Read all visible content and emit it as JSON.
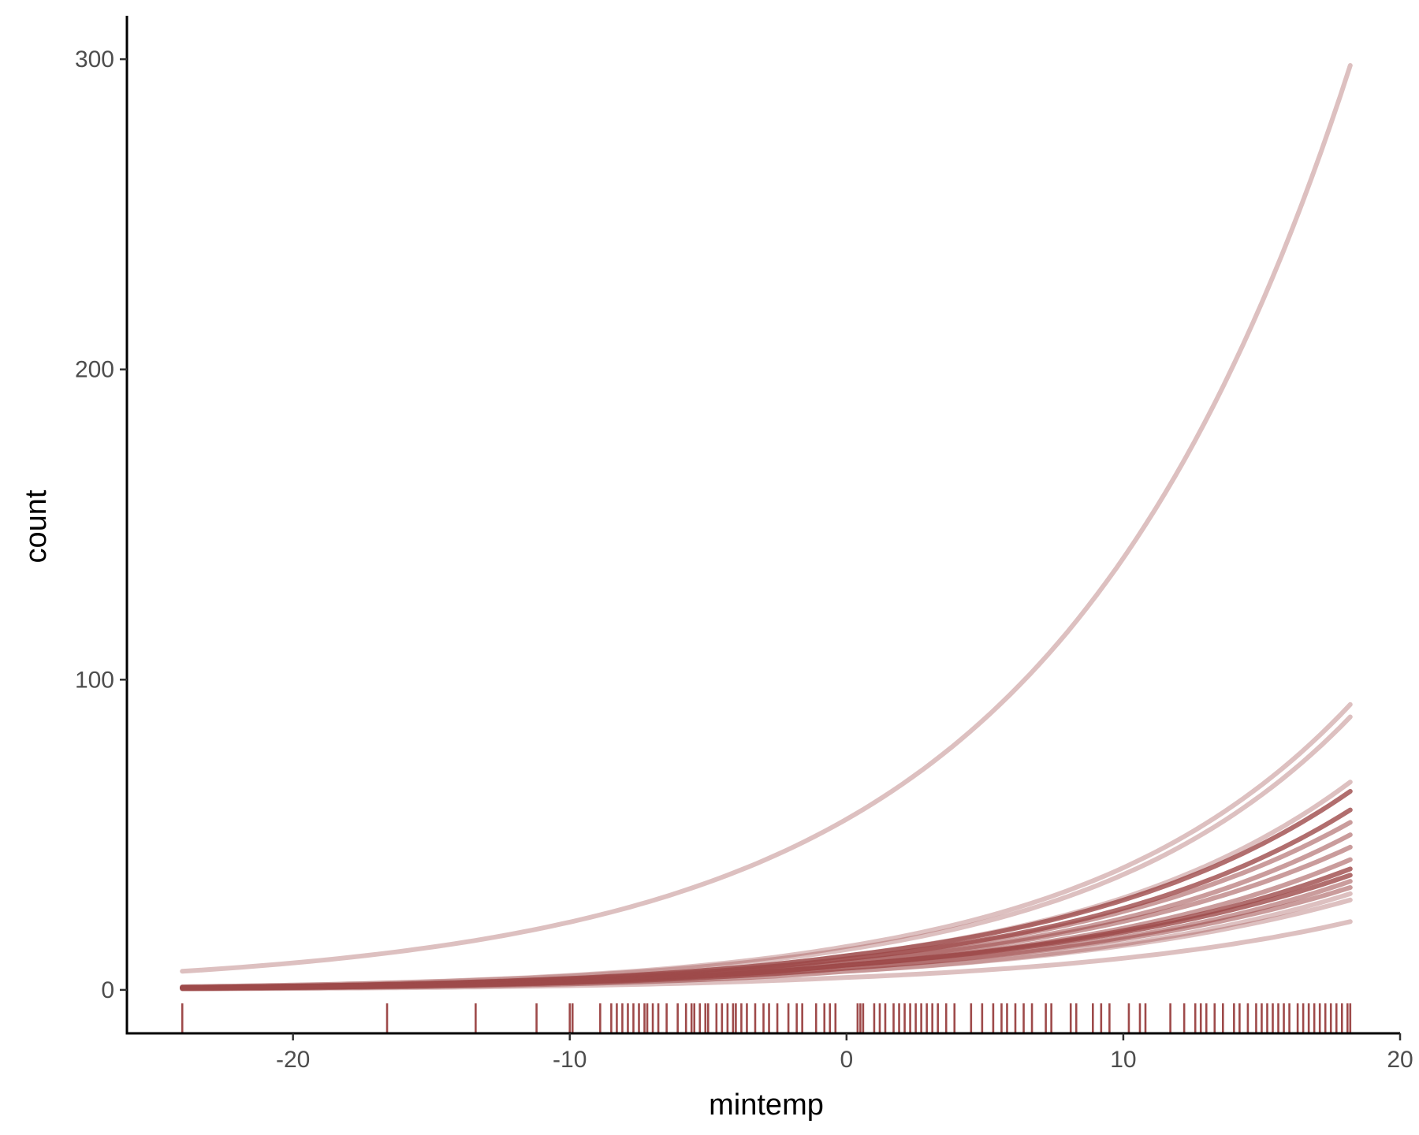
{
  "chart_data": {
    "type": "line",
    "title": "",
    "xlabel": "mintemp",
    "ylabel": "count",
    "xlim": [
      -26,
      20
    ],
    "ylim": [
      -14,
      314
    ],
    "x_ticks": [
      -20,
      -10,
      0,
      10,
      20
    ],
    "y_ticks": [
      0,
      100,
      200,
      300
    ],
    "x_tick_labels": [
      "-20",
      "-10",
      "0",
      "10",
      "20"
    ],
    "y_tick_labels": [
      "0",
      "100",
      "200",
      "300"
    ],
    "grid": false,
    "legend": "none",
    "curve_x_range": [
      -24,
      18.2
    ],
    "line_color": "#9e4a4a",
    "rug_color": "#9e4a4a",
    "series": [
      {
        "values_at_x": [
          -24,
          0,
          18.2
        ],
        "values": [
          6,
          55,
          298
        ],
        "style": "light"
      },
      {
        "values_at_x": [
          -24,
          0,
          18.2
        ],
        "values": [
          1.0,
          14,
          92
        ],
        "style": "light"
      },
      {
        "values_at_x": [
          -24,
          0,
          18.2
        ],
        "values": [
          1.0,
          13,
          88
        ],
        "style": "light"
      },
      {
        "values_at_x": [
          -24,
          0,
          18.2
        ],
        "values": [
          0.8,
          11,
          67
        ],
        "style": "light"
      },
      {
        "values_at_x": [
          -24,
          0,
          18.2
        ],
        "values": [
          0.8,
          11,
          64
        ],
        "style": "dark"
      },
      {
        "values_at_x": [
          -24,
          0,
          18.2
        ],
        "values": [
          0.8,
          10,
          58
        ],
        "style": "dark"
      },
      {
        "values_at_x": [
          -24,
          0,
          18.2
        ],
        "values": [
          0.7,
          10,
          54
        ],
        "style": "mid"
      },
      {
        "values_at_x": [
          -24,
          0,
          18.2
        ],
        "values": [
          0.7,
          9,
          50
        ],
        "style": "mid"
      },
      {
        "values_at_x": [
          -24,
          0,
          18.2
        ],
        "values": [
          0.6,
          9,
          46
        ],
        "style": "mid"
      },
      {
        "values_at_x": [
          -24,
          0,
          18.2
        ],
        "values": [
          0.6,
          8,
          42
        ],
        "style": "mid"
      },
      {
        "values_at_x": [
          -24,
          0,
          18.2
        ],
        "values": [
          0.6,
          8,
          39
        ],
        "style": "dark"
      },
      {
        "values_at_x": [
          -24,
          0,
          18.2
        ],
        "values": [
          0.5,
          8,
          37
        ],
        "style": "dark"
      },
      {
        "values_at_x": [
          -24,
          0,
          18.2
        ],
        "values": [
          0.5,
          7,
          35
        ],
        "style": "mid"
      },
      {
        "values_at_x": [
          -24,
          0,
          18.2
        ],
        "values": [
          0.5,
          7,
          33
        ],
        "style": "mid"
      },
      {
        "values_at_x": [
          -24,
          0,
          18.2
        ],
        "values": [
          0.4,
          6,
          31
        ],
        "style": "light"
      },
      {
        "values_at_x": [
          -24,
          0,
          18.2
        ],
        "values": [
          0.4,
          6,
          29
        ],
        "style": "light"
      },
      {
        "values_at_x": [
          -24,
          0,
          18.2
        ],
        "values": [
          0.3,
          4,
          22
        ],
        "style": "light"
      }
    ],
    "rug": [
      -24.0,
      -16.6,
      -13.4,
      -11.2,
      -10.0,
      -9.9,
      -8.9,
      -8.5,
      -8.3,
      -8.1,
      -7.9,
      -7.7,
      -7.5,
      -7.3,
      -7.2,
      -7.0,
      -6.8,
      -6.5,
      -6.1,
      -5.8,
      -5.6,
      -5.5,
      -5.3,
      -5.1,
      -5.0,
      -4.7,
      -4.5,
      -4.3,
      -4.1,
      -4.0,
      -3.8,
      -3.6,
      -3.3,
      -3.0,
      -2.8,
      -2.5,
      -2.1,
      -1.8,
      -1.6,
      -1.1,
      -0.8,
      -0.6,
      -0.4,
      0.4,
      0.5,
      0.6,
      1.0,
      1.2,
      1.4,
      1.7,
      1.9,
      2.1,
      2.3,
      2.5,
      2.7,
      2.9,
      3.1,
      3.3,
      3.6,
      3.9,
      4.5,
      4.9,
      5.3,
      5.6,
      5.8,
      6.1,
      6.4,
      6.7,
      7.2,
      7.4,
      8.1,
      8.3,
      8.9,
      9.2,
      9.5,
      10.2,
      10.6,
      10.8,
      11.7,
      12.2,
      12.6,
      12.8,
      13.0,
      13.3,
      13.6,
      14.0,
      14.2,
      14.5,
      14.8,
      15.0,
      15.2,
      15.4,
      15.6,
      15.8,
      16.0,
      16.3,
      16.5,
      16.7,
      16.9,
      17.1,
      17.3,
      17.5,
      17.7,
      17.9,
      18.1,
      18.2
    ]
  }
}
